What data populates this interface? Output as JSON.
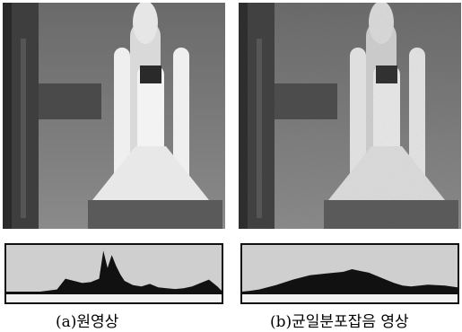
{
  "figure": {
    "panels": [
      {
        "id": "a",
        "caption": "(a)원영상",
        "image": "space-shuttle-launch-original",
        "noise": "none"
      },
      {
        "id": "b",
        "caption": "(b)균일분포잡음 영상",
        "image": "space-shuttle-launch-uniform-noise",
        "noise": "uniform"
      }
    ]
  },
  "chart_data": [
    {
      "type": "area",
      "panel": "a",
      "xlim": [
        0,
        255
      ],
      "x": [
        0,
        20,
        40,
        60,
        70,
        80,
        90,
        100,
        110,
        115,
        120,
        125,
        130,
        135,
        140,
        150,
        160,
        170,
        180,
        190,
        200,
        210,
        220,
        230,
        240,
        250,
        255
      ],
      "values": [
        0,
        0,
        0,
        0.05,
        0.3,
        0.25,
        0.2,
        0.22,
        0.3,
        0.95,
        0.55,
        0.85,
        0.6,
        0.4,
        0.25,
        0.15,
        0.12,
        0.18,
        0.1,
        0.08,
        0.06,
        0.08,
        0.12,
        0.2,
        0.28,
        0.12,
        0.02
      ]
    },
    {
      "type": "area",
      "panel": "b",
      "xlim": [
        0,
        255
      ],
      "x": [
        0,
        10,
        20,
        40,
        60,
        80,
        100,
        120,
        130,
        140,
        150,
        160,
        170,
        180,
        190,
        200,
        210,
        220,
        230,
        240,
        255
      ],
      "values": [
        0,
        0.02,
        0.05,
        0.15,
        0.28,
        0.38,
        0.42,
        0.46,
        0.52,
        0.48,
        0.44,
        0.36,
        0.28,
        0.2,
        0.14,
        0.12,
        0.14,
        0.16,
        0.15,
        0.14,
        0.1
      ]
    }
  ]
}
